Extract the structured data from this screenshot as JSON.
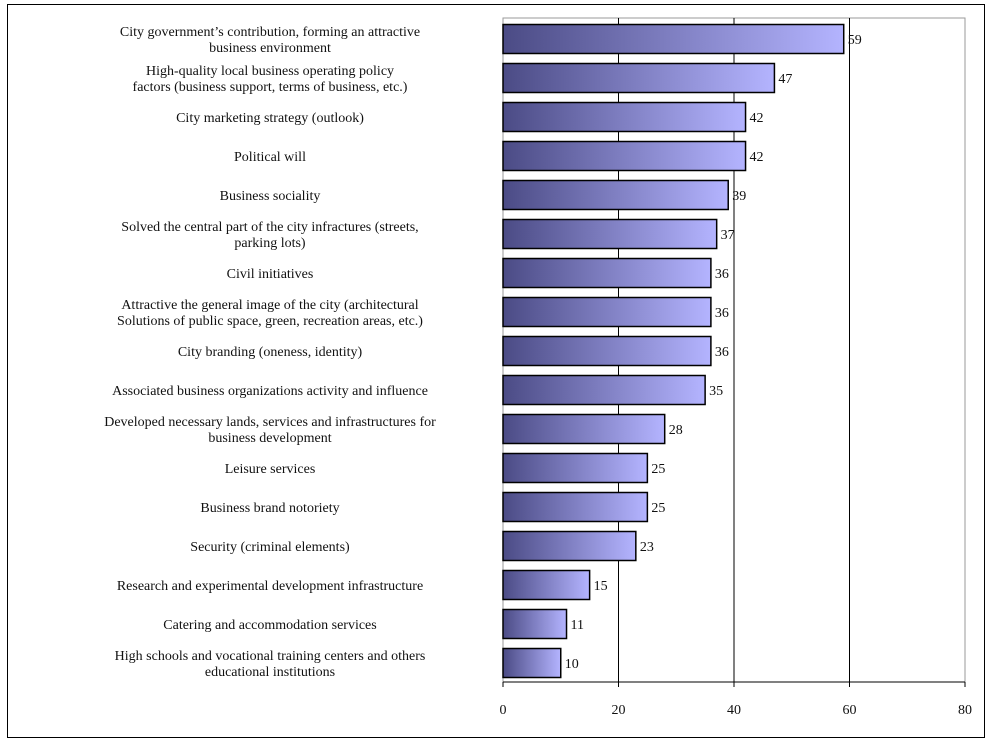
{
  "chart_data": {
    "type": "bar",
    "orientation": "horizontal",
    "categories": [
      [
        "City government’s contribution, forming an attractive",
        "business environment"
      ],
      [
        "High-quality local business operating policy",
        "factors (business support, terms of business, etc.)"
      ],
      [
        "City marketing strategy (outlook)"
      ],
      [
        "Political will"
      ],
      [
        "Business sociality"
      ],
      [
        "Solved the central part of the city infractures (streets,",
        "parking lots)"
      ],
      [
        "Civil initiatives"
      ],
      [
        "Attractive the general image of the city (architectural",
        "Solutions of public space, green, recreation areas, etc.)"
      ],
      [
        "City branding (oneness, identity)"
      ],
      [
        "Associated business organizations activity and influence"
      ],
      [
        "Developed necessary lands, services and infrastructures for",
        "business development"
      ],
      [
        "Leisure services"
      ],
      [
        "Business brand notoriety"
      ],
      [
        "Security (criminal elements)"
      ],
      [
        "Research and experimental development infrastructure"
      ],
      [
        "Catering and accommodation services"
      ],
      [
        "High schools and vocational training centers and others",
        "educational institutions"
      ]
    ],
    "values": [
      59,
      47,
      42,
      42,
      39,
      37,
      36,
      36,
      36,
      35,
      28,
      25,
      25,
      23,
      15,
      11,
      10
    ],
    "value_labels": [
      "59",
      "47",
      "42",
      "42",
      "39",
      "37",
      "36",
      "36",
      "36",
      "35",
      "28",
      "25",
      "25",
      "23",
      "15",
      "11",
      "10"
    ],
    "xlim": [
      0,
      80
    ],
    "xticks": [
      0,
      20,
      40,
      60,
      80
    ],
    "xtick_labels": [
      "0",
      "20",
      "40",
      "60",
      "80"
    ],
    "grid": "vertical major gridlines",
    "bar_color_left": "#4b4b85",
    "bar_color_right": "#b4b4ff",
    "bar_outline": "#000000"
  }
}
